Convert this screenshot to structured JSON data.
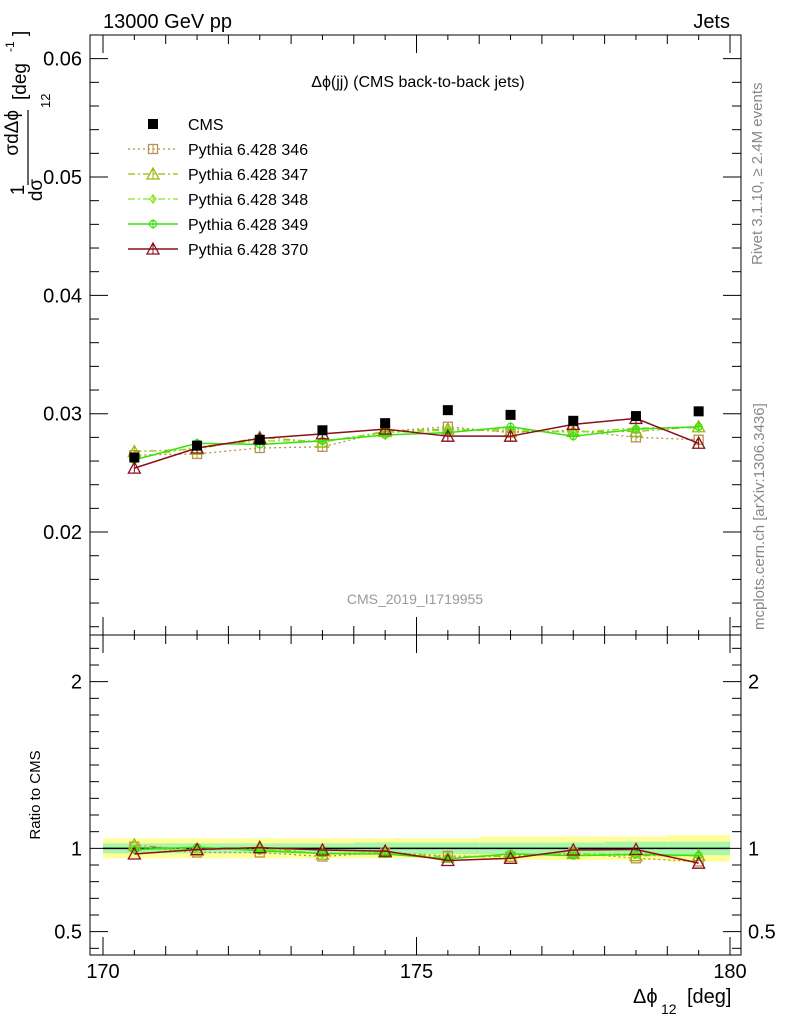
{
  "header": {
    "left": "13000 GeV pp",
    "right": "Jets"
  },
  "side_labels": {
    "rivet": "Rivet 3.1.10, ≥ 2.4M events",
    "mcplots": "mcplots.cern.ch [arXiv:1306.3436]"
  },
  "watermark": "CMS_2019_I1719955",
  "colors": {
    "cms": "#000000",
    "p346": "#b8904f",
    "p347": "#9cb70d",
    "p348": "#88e620",
    "p349": "#3adf10",
    "p370": "#8c0f1a",
    "band_outer": "#ffff99",
    "band_inner": "#aaf7aa"
  },
  "chart_data": [
    {
      "type": "line",
      "title": "Δϕ(jj) (CMS back-to-back jets)",
      "ylabel_num": "1",
      "ylabel_dsigma": "dσ",
      "ylabel_den": "σdΔϕ",
      "ylabel_sub": "12",
      "ylabel_unit": "[deg",
      "ylabel_exp": "-1",
      "ylabel_close": "]",
      "xlim": [
        170,
        180
      ],
      "ylim": [
        0.0113,
        0.062
      ],
      "yticks": [
        "0.02",
        "0.03",
        "0.04",
        "0.05",
        "0.06"
      ],
      "ytick_values": [
        0.02,
        0.03,
        0.04,
        0.05,
        0.06
      ],
      "x": [
        170.5,
        171.5,
        172.5,
        173.5,
        174.5,
        175.5,
        176.5,
        177.5,
        178.5,
        179.5
      ],
      "series": [
        {
          "name": "CMS",
          "key": "cms",
          "marker": "square-filled",
          "line": "none",
          "values": [
            0.0263,
            0.0273,
            0.0278,
            0.0286,
            0.0292,
            0.0303,
            0.0299,
            0.0294,
            0.0298,
            0.0302
          ]
        },
        {
          "name": "Pythia 6.428 346",
          "key": "p346",
          "marker": "square-open",
          "line": "dotted",
          "values": [
            0.0265,
            0.0266,
            0.0271,
            0.0272,
            0.0285,
            0.0289,
            0.0284,
            0.0286,
            0.028,
            0.0278
          ]
        },
        {
          "name": "Pythia 6.428 347",
          "key": "p347",
          "marker": "triangle-open",
          "line": "dashdot",
          "values": [
            0.0268,
            0.027,
            0.028,
            0.0276,
            0.0285,
            0.0287,
            0.0285,
            0.0285,
            0.0285,
            0.0289
          ]
        },
        {
          "name": "Pythia 6.428 348",
          "key": "p348",
          "marker": "diamond-open",
          "line": "dashdot",
          "values": [
            0.0262,
            0.0272,
            0.0277,
            0.0277,
            0.0284,
            0.0286,
            0.0287,
            0.0284,
            0.0288,
            0.0288
          ]
        },
        {
          "name": "Pythia 6.428 349",
          "key": "p349",
          "marker": "circle-cross",
          "line": "solid",
          "values": [
            0.0261,
            0.0275,
            0.0274,
            0.0277,
            0.0282,
            0.0284,
            0.0289,
            0.0281,
            0.0287,
            0.0289
          ]
        },
        {
          "name": "Pythia 6.428 370",
          "key": "p370",
          "marker": "triangle-open",
          "line": "solid",
          "values": [
            0.0254,
            0.0271,
            0.0279,
            0.0283,
            0.0287,
            0.0281,
            0.0281,
            0.0291,
            0.0296,
            0.0275
          ]
        }
      ]
    },
    {
      "type": "line",
      "ylabel": "Ratio to CMS",
      "xlabel_main": "Δϕ",
      "xlabel_sub": "12",
      "xlabel_unit": "[deg]",
      "xlim": [
        170,
        180
      ],
      "ylim": [
        0.36,
        2.28
      ],
      "yticks": [
        "0.5",
        "1",
        "2"
      ],
      "ytick_values": [
        0.5,
        1,
        2
      ],
      "xticks": [
        "170",
        "175",
        "180"
      ],
      "xtick_values": [
        170,
        175,
        180
      ],
      "band_outer": [
        0.06,
        0.06,
        0.06,
        0.06,
        0.06,
        0.06,
        0.07,
        0.07,
        0.07,
        0.08
      ],
      "band_inner": [
        0.03,
        0.03,
        0.03,
        0.03,
        0.035,
        0.035,
        0.035,
        0.035,
        0.04,
        0.04
      ],
      "series": [
        {
          "name": "Pythia 6.428 346",
          "key": "p346",
          "marker": "square-open",
          "line": "dotted",
          "values": [
            1.01,
            0.975,
            0.975,
            0.951,
            0.976,
            0.954,
            0.95,
            0.973,
            0.94,
            0.921
          ]
        },
        {
          "name": "Pythia 6.428 347",
          "key": "p347",
          "marker": "triangle-open",
          "line": "dashdot",
          "values": [
            1.02,
            0.989,
            1.007,
            0.965,
            0.976,
            0.947,
            0.953,
            0.969,
            0.956,
            0.957
          ]
        },
        {
          "name": "Pythia 6.428 348",
          "key": "p348",
          "marker": "diamond-open",
          "line": "dashdot",
          "values": [
            0.996,
            0.996,
            0.996,
            0.969,
            0.973,
            0.944,
            0.96,
            0.966,
            0.966,
            0.954
          ]
        },
        {
          "name": "Pythia 6.428 349",
          "key": "p349",
          "marker": "circle-cross",
          "line": "solid",
          "values": [
            0.992,
            1.007,
            0.986,
            0.969,
            0.966,
            0.937,
            0.967,
            0.956,
            0.963,
            0.957
          ]
        },
        {
          "name": "Pythia 6.428 370",
          "key": "p370",
          "marker": "triangle-open",
          "line": "solid",
          "values": [
            0.966,
            0.993,
            1.004,
            0.99,
            0.983,
            0.927,
            0.94,
            0.99,
            0.993,
            0.911
          ]
        }
      ]
    }
  ]
}
